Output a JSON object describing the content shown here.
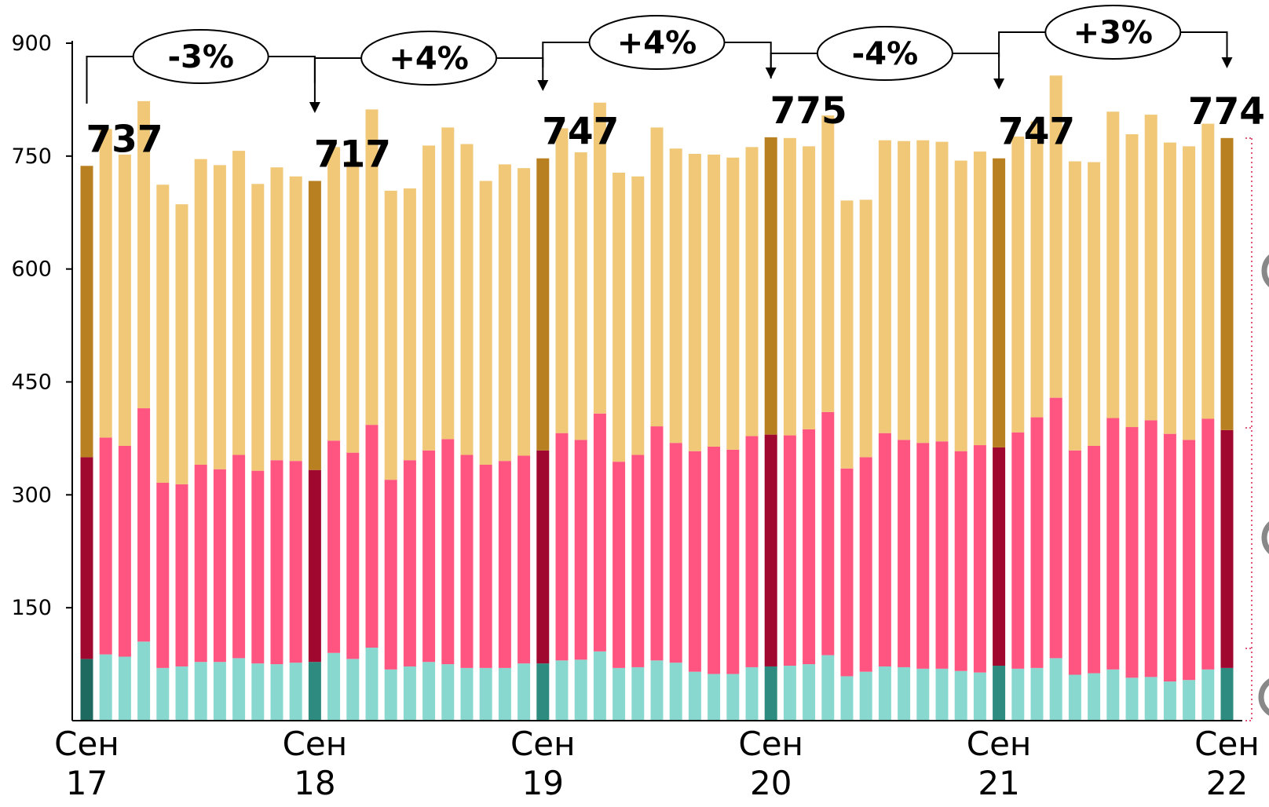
{
  "chart_data": {
    "type": "bar",
    "stacked": true,
    "ylim": [
      0,
      900
    ],
    "y_ticks": [
      "150",
      "300",
      "450",
      "600",
      "750",
      "900"
    ],
    "x_labels": [
      {
        "index": 0,
        "month": "Сен",
        "year": "17"
      },
      {
        "index": 12,
        "month": "Сен",
        "year": "18"
      },
      {
        "index": 24,
        "month": "Сен",
        "year": "19"
      },
      {
        "index": 36,
        "month": "Сен",
        "year": "20"
      },
      {
        "index": 48,
        "month": "Сен",
        "year": "21"
      },
      {
        "index": 60,
        "month": "Сен",
        "year": "22"
      }
    ],
    "totals": [
      {
        "index": 0,
        "label": "737"
      },
      {
        "index": 12,
        "label": "717"
      },
      {
        "index": 24,
        "label": "747"
      },
      {
        "index": 36,
        "label": "775"
      },
      {
        "index": 48,
        "label": "747"
      },
      {
        "index": 60,
        "label": "774"
      }
    ],
    "changes": [
      {
        "from": 0,
        "to": 12,
        "label": "-3%"
      },
      {
        "from": 12,
        "to": 24,
        "label": "+4%"
      },
      {
        "from": 24,
        "to": 36,
        "label": "+4%"
      },
      {
        "from": 36,
        "to": 48,
        "label": "-4%"
      },
      {
        "from": 48,
        "to": 60,
        "label": "+3%"
      }
    ],
    "colors": {
      "bottom": "#88D8D0",
      "bottom_hl": "#2E8B80",
      "bottom_first": "#1E6A60",
      "middle": "#FF5580",
      "middle_hl": "#A00830",
      "top": "#F0C878",
      "top_hl": "#B88020",
      "axis": "#000000",
      "side_dots": "#E05A78",
      "side_circle": "#888888"
    },
    "highlight_indices": [
      0,
      12,
      24,
      36,
      48,
      60
    ],
    "series": [
      {
        "values": [
          82,
          88,
          85,
          105,
          70,
          72,
          78,
          78,
          83,
          76,
          75,
          77,
          78,
          90,
          82,
          97,
          68,
          72,
          78,
          75,
          70,
          70,
          70,
          76,
          76,
          80,
          81,
          92,
          70,
          71,
          80,
          77,
          65,
          62,
          62,
          71,
          72,
          73,
          75,
          87,
          59,
          65,
          72,
          71,
          69,
          69,
          66,
          64,
          73,
          69,
          70,
          83,
          61,
          63,
          68,
          57,
          58,
          52,
          54,
          68,
          70
        ]
      },
      {
        "values": [
          268,
          288,
          280,
          310,
          246,
          242,
          262,
          256,
          270,
          256,
          271,
          268,
          255,
          282,
          274,
          296,
          252,
          274,
          281,
          299,
          283,
          270,
          275,
          276,
          283,
          302,
          292,
          316,
          274,
          282,
          311,
          292,
          293,
          302,
          298,
          307,
          308,
          306,
          312,
          323,
          276,
          285,
          310,
          302,
          300,
          302,
          292,
          302,
          290,
          314,
          333,
          346,
          298,
          302,
          334,
          333,
          341,
          329,
          319,
          333,
          316
        ]
      },
      {
        "values": [
          387,
          410,
          387,
          408,
          396,
          372,
          406,
          404,
          404,
          381,
          389,
          378,
          384,
          390,
          387,
          419,
          384,
          361,
          405,
          414,
          413,
          377,
          394,
          382,
          388,
          405,
          382,
          413,
          384,
          370,
          397,
          391,
          395,
          388,
          388,
          384,
          395,
          395,
          376,
          394,
          356,
          342,
          389,
          397,
          402,
          398,
          386,
          390,
          384,
          393,
          393,
          428,
          384,
          377,
          407,
          389,
          406,
          387,
          390,
          392,
          388
        ]
      }
    ]
  }
}
